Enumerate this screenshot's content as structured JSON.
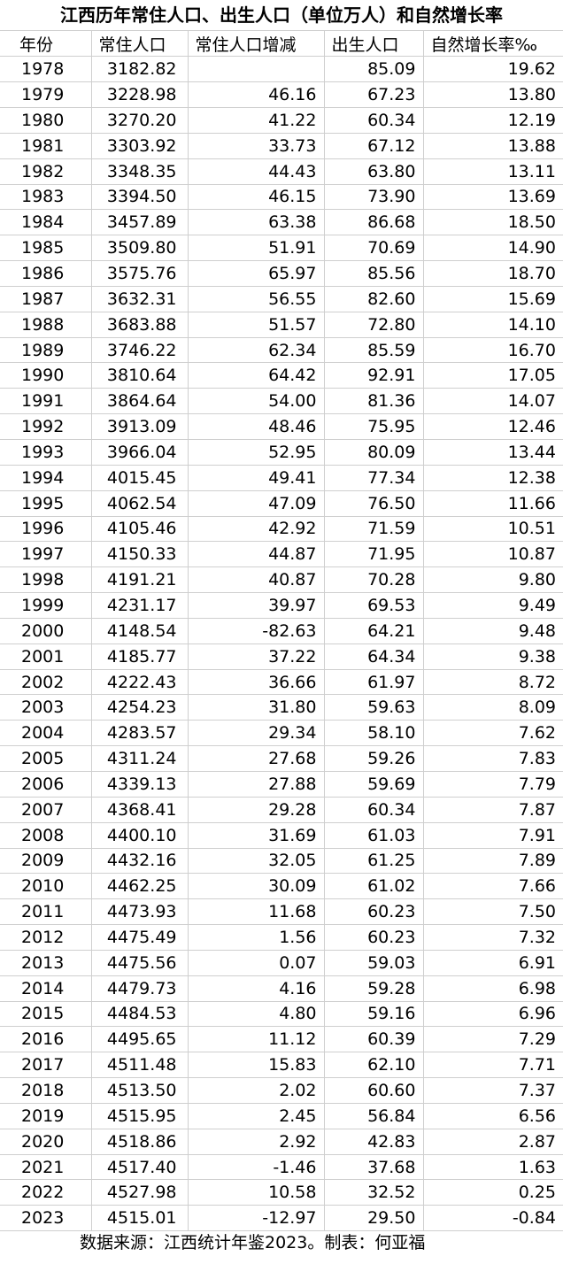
{
  "title": "江西历年常住人口、出生人口（单位万人）和自然增长率",
  "headers": [
    "年份",
    "常住人口",
    "常住人口增减",
    "出生人口",
    "自然增长率‰"
  ],
  "rows": [
    [
      "1978",
      "3182.82",
      "",
      "85.09",
      "19.62"
    ],
    [
      "1979",
      "3228.98",
      "46.16",
      "67.23",
      "13.80"
    ],
    [
      "1980",
      "3270.20",
      "41.22",
      "60.34",
      "12.19"
    ],
    [
      "1981",
      "3303.92",
      "33.73",
      "67.12",
      "13.88"
    ],
    [
      "1982",
      "3348.35",
      "44.43",
      "63.80",
      "13.11"
    ],
    [
      "1983",
      "3394.50",
      "46.15",
      "73.90",
      "13.69"
    ],
    [
      "1984",
      "3457.89",
      "63.38",
      "86.68",
      "18.50"
    ],
    [
      "1985",
      "3509.80",
      "51.91",
      "70.69",
      "14.90"
    ],
    [
      "1986",
      "3575.76",
      "65.97",
      "85.56",
      "18.70"
    ],
    [
      "1987",
      "3632.31",
      "56.55",
      "82.60",
      "15.69"
    ],
    [
      "1988",
      "3683.88",
      "51.57",
      "72.80",
      "14.10"
    ],
    [
      "1989",
      "3746.22",
      "62.34",
      "85.59",
      "16.70"
    ],
    [
      "1990",
      "3810.64",
      "64.42",
      "92.91",
      "17.05"
    ],
    [
      "1991",
      "3864.64",
      "54.00",
      "81.36",
      "14.07"
    ],
    [
      "1992",
      "3913.09",
      "48.46",
      "75.95",
      "12.46"
    ],
    [
      "1993",
      "3966.04",
      "52.95",
      "80.09",
      "13.44"
    ],
    [
      "1994",
      "4015.45",
      "49.41",
      "77.34",
      "12.38"
    ],
    [
      "1995",
      "4062.54",
      "47.09",
      "76.50",
      "11.66"
    ],
    [
      "1996",
      "4105.46",
      "42.92",
      "71.59",
      "10.51"
    ],
    [
      "1997",
      "4150.33",
      "44.87",
      "71.95",
      "10.87"
    ],
    [
      "1998",
      "4191.21",
      "40.87",
      "70.28",
      "9.80"
    ],
    [
      "1999",
      "4231.17",
      "39.97",
      "69.53",
      "9.49"
    ],
    [
      "2000",
      "4148.54",
      "-82.63",
      "64.21",
      "9.48"
    ],
    [
      "2001",
      "4185.77",
      "37.22",
      "64.34",
      "9.38"
    ],
    [
      "2002",
      "4222.43",
      "36.66",
      "61.97",
      "8.72"
    ],
    [
      "2003",
      "4254.23",
      "31.80",
      "59.63",
      "8.09"
    ],
    [
      "2004",
      "4283.57",
      "29.34",
      "58.10",
      "7.62"
    ],
    [
      "2005",
      "4311.24",
      "27.68",
      "59.26",
      "7.83"
    ],
    [
      "2006",
      "4339.13",
      "27.88",
      "59.69",
      "7.79"
    ],
    [
      "2007",
      "4368.41",
      "29.28",
      "60.34",
      "7.87"
    ],
    [
      "2008",
      "4400.10",
      "31.69",
      "61.03",
      "7.91"
    ],
    [
      "2009",
      "4432.16",
      "32.05",
      "61.25",
      "7.89"
    ],
    [
      "2010",
      "4462.25",
      "30.09",
      "61.02",
      "7.66"
    ],
    [
      "2011",
      "4473.93",
      "11.68",
      "60.23",
      "7.50"
    ],
    [
      "2012",
      "4475.49",
      "1.56",
      "60.23",
      "7.32"
    ],
    [
      "2013",
      "4475.56",
      "0.07",
      "59.03",
      "6.91"
    ],
    [
      "2014",
      "4479.73",
      "4.16",
      "59.28",
      "6.98"
    ],
    [
      "2015",
      "4484.53",
      "4.80",
      "59.16",
      "6.96"
    ],
    [
      "2016",
      "4495.65",
      "11.12",
      "60.39",
      "7.29"
    ],
    [
      "2017",
      "4511.48",
      "15.83",
      "62.10",
      "7.71"
    ],
    [
      "2018",
      "4513.50",
      "2.02",
      "60.60",
      "7.37"
    ],
    [
      "2019",
      "4515.95",
      "2.45",
      "56.84",
      "6.56"
    ],
    [
      "2020",
      "4518.86",
      "2.92",
      "42.83",
      "2.87"
    ],
    [
      "2021",
      "4517.40",
      "-1.46",
      "37.68",
      "1.63"
    ],
    [
      "2022",
      "4527.98",
      "10.58",
      "32.52",
      "0.25"
    ],
    [
      "2023",
      "4515.01",
      "-12.97",
      "29.50",
      "-0.84"
    ]
  ],
  "footer": "数据来源：江西统计年鉴2023。制表：何亚福"
}
